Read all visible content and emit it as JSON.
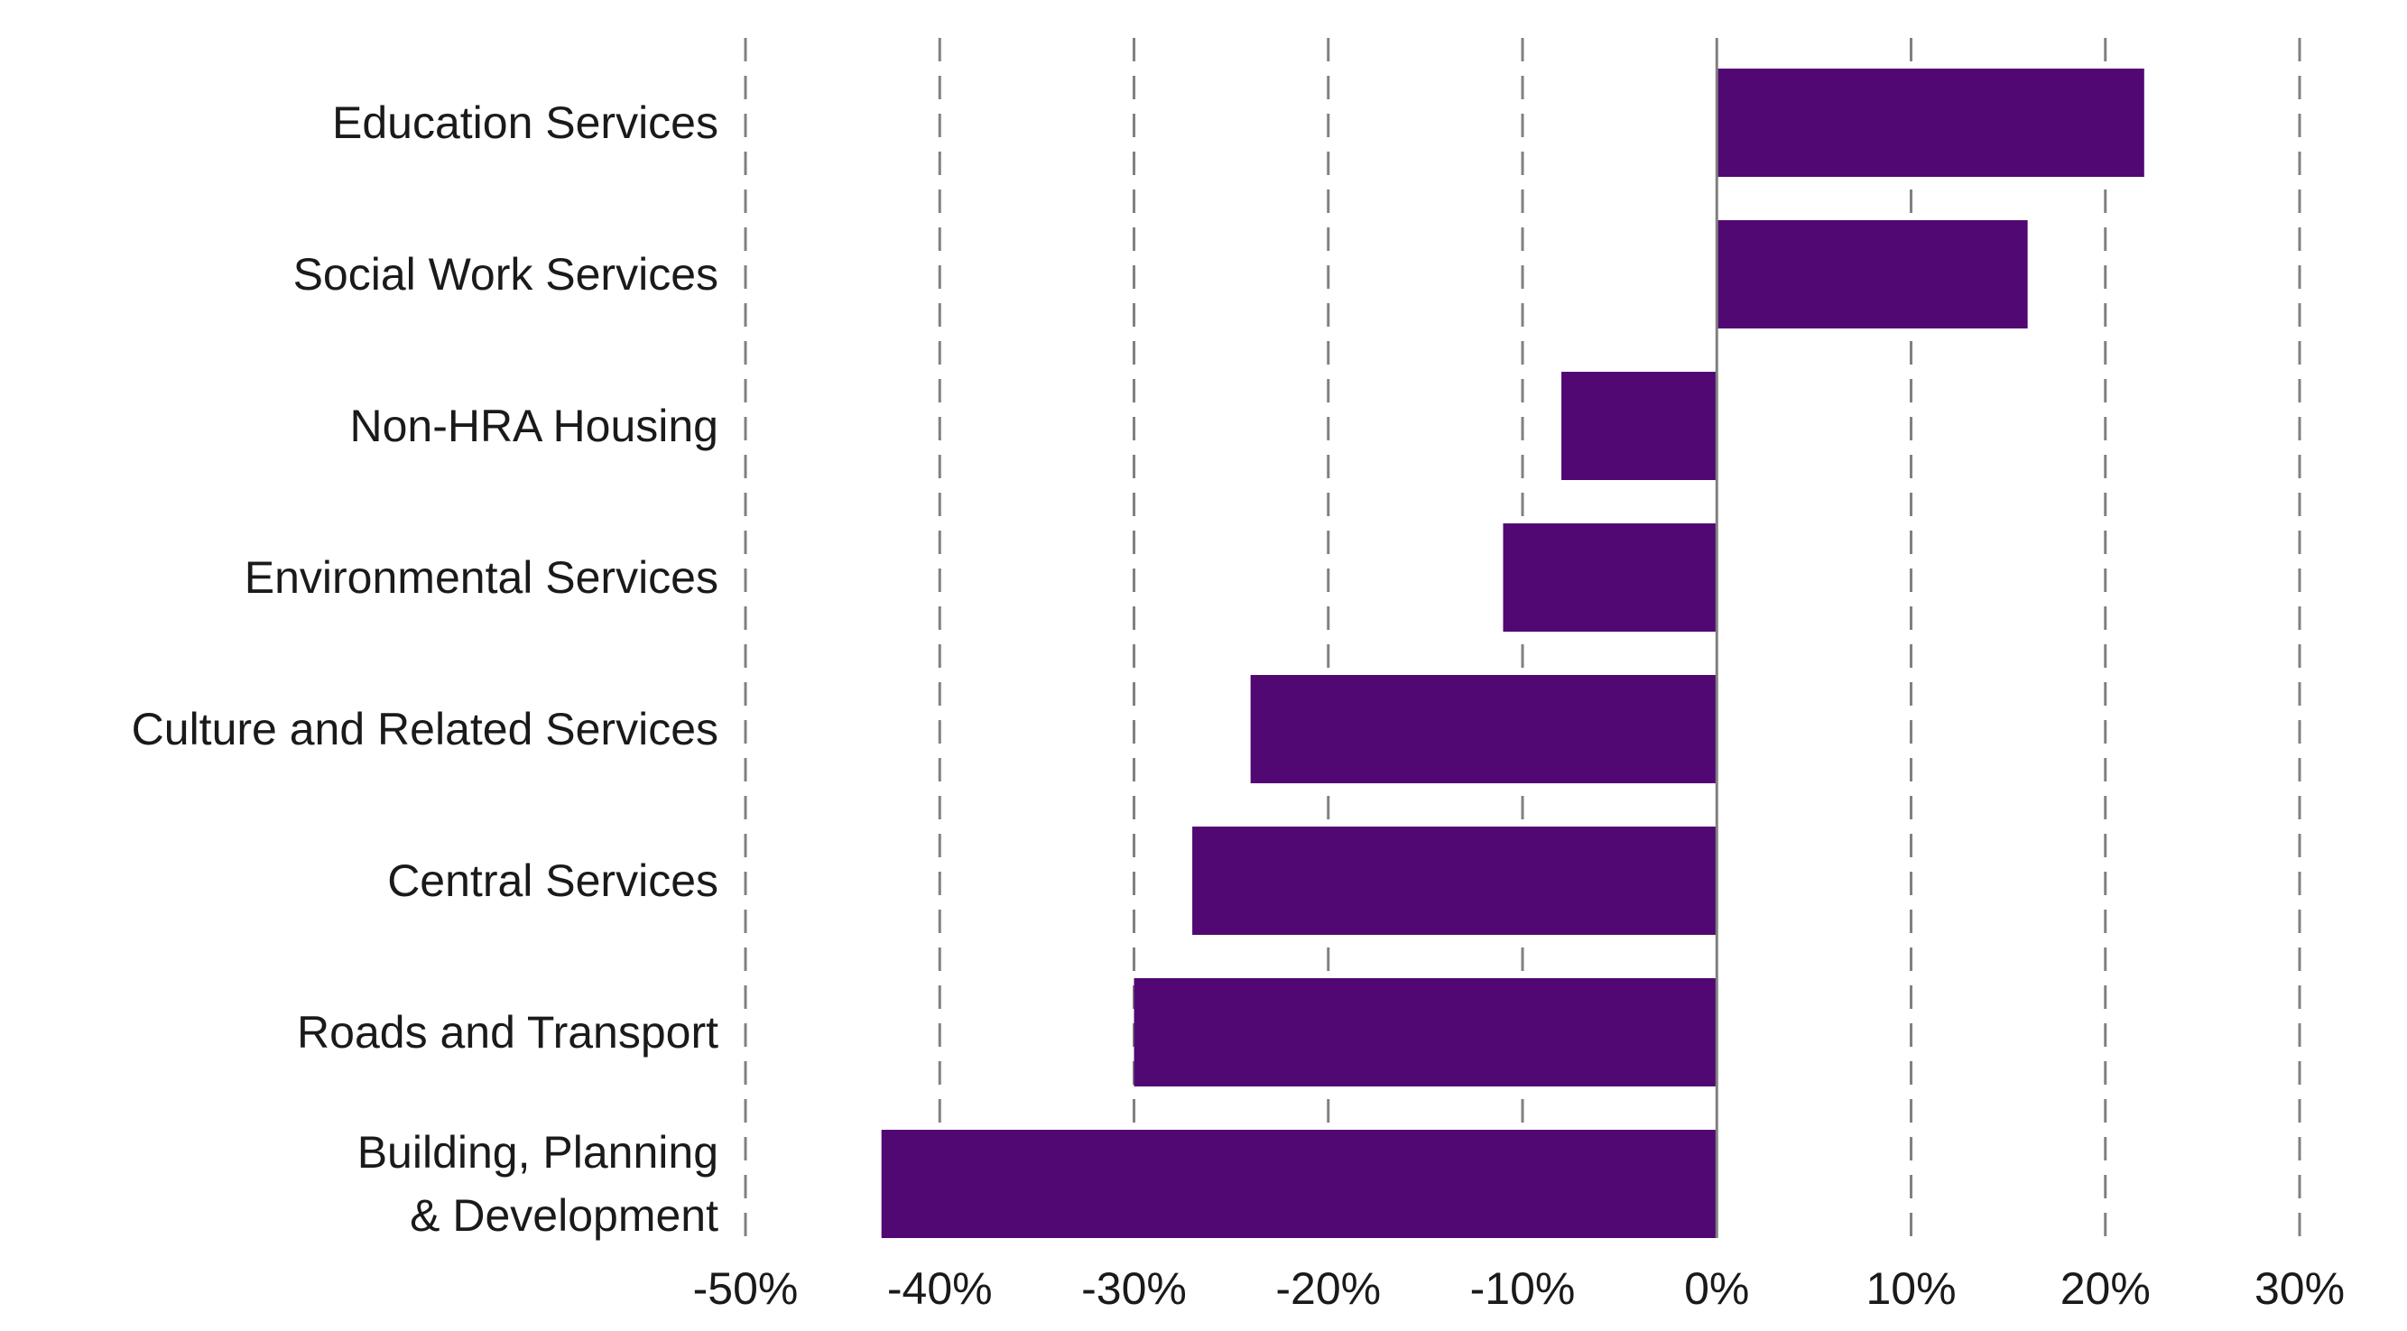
{
  "chart_data": {
    "type": "bar",
    "orientation": "horizontal",
    "categories": [
      [
        "Education Services"
      ],
      [
        "Social Work Services"
      ],
      [
        "Non-HRA Housing"
      ],
      [
        "Environmental Services"
      ],
      [
        "Culture and Related Services"
      ],
      [
        "Central Services"
      ],
      [
        "Roads and Transport"
      ],
      [
        "Building, Planning",
        "& Development"
      ]
    ],
    "values": [
      22,
      16,
      -8,
      -11,
      -24,
      -27,
      -30,
      -43
    ],
    "xlim": [
      -50,
      30
    ],
    "xticks": [
      -50,
      -40,
      -30,
      -20,
      -10,
      0,
      10,
      20,
      30
    ],
    "tick_labels": [
      "-50%",
      "-40%",
      "-30%",
      "-20%",
      "-10%",
      "0%",
      "10%",
      "20%",
      "30%"
    ],
    "grid": "vertical-dashed",
    "bar_color": "#510872",
    "grid_color": "#808080",
    "title": "",
    "xlabel": "",
    "ylabel": ""
  }
}
